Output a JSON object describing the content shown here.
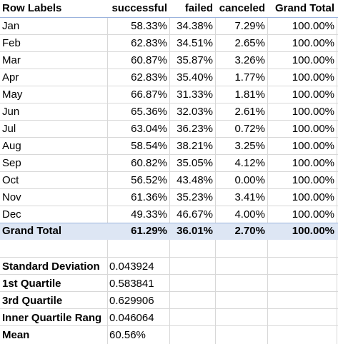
{
  "pivot": {
    "headers": [
      "Row Labels",
      "successful",
      "failed",
      "canceled",
      "Grand Total"
    ],
    "rows": [
      {
        "label": "Jan",
        "successful": "58.33%",
        "failed": "34.38%",
        "canceled": "7.29%",
        "total": "100.00%"
      },
      {
        "label": "Feb",
        "successful": "62.83%",
        "failed": "34.51%",
        "canceled": "2.65%",
        "total": "100.00%"
      },
      {
        "label": "Mar",
        "successful": "60.87%",
        "failed": "35.87%",
        "canceled": "3.26%",
        "total": "100.00%"
      },
      {
        "label": "Apr",
        "successful": "62.83%",
        "failed": "35.40%",
        "canceled": "1.77%",
        "total": "100.00%"
      },
      {
        "label": "May",
        "successful": "66.87%",
        "failed": "31.33%",
        "canceled": "1.81%",
        "total": "100.00%"
      },
      {
        "label": "Jun",
        "successful": "65.36%",
        "failed": "32.03%",
        "canceled": "2.61%",
        "total": "100.00%"
      },
      {
        "label": "Jul",
        "successful": "63.04%",
        "failed": "36.23%",
        "canceled": "0.72%",
        "total": "100.00%"
      },
      {
        "label": "Aug",
        "successful": "58.54%",
        "failed": "38.21%",
        "canceled": "3.25%",
        "total": "100.00%"
      },
      {
        "label": "Sep",
        "successful": "60.82%",
        "failed": "35.05%",
        "canceled": "4.12%",
        "total": "100.00%"
      },
      {
        "label": "Oct",
        "successful": "56.52%",
        "failed": "43.48%",
        "canceled": "0.00%",
        "total": "100.00%"
      },
      {
        "label": "Nov",
        "successful": "61.36%",
        "failed": "35.23%",
        "canceled": "3.41%",
        "total": "100.00%"
      },
      {
        "label": "Dec",
        "successful": "49.33%",
        "failed": "46.67%",
        "canceled": "4.00%",
        "total": "100.00%"
      }
    ],
    "grand_total": {
      "label": "Grand Total",
      "successful": "61.29%",
      "failed": "36.01%",
      "canceled": "2.70%",
      "total": "100.00%"
    }
  },
  "stats": [
    {
      "label": "Standard Deviation",
      "value": "0.043924"
    },
    {
      "label": "1st Quartile",
      "value": "0.583841"
    },
    {
      "label": "3rd Quartile",
      "value": "0.629906"
    },
    {
      "label": "Inner Quartile Rang",
      "value": "0.046064"
    },
    {
      "label": "Mean",
      "value": "60.56%"
    }
  ],
  "colors": {
    "header_line": "#9bb3dd",
    "total_fill": "#dde6f4",
    "grid": "#d8d8d8"
  }
}
